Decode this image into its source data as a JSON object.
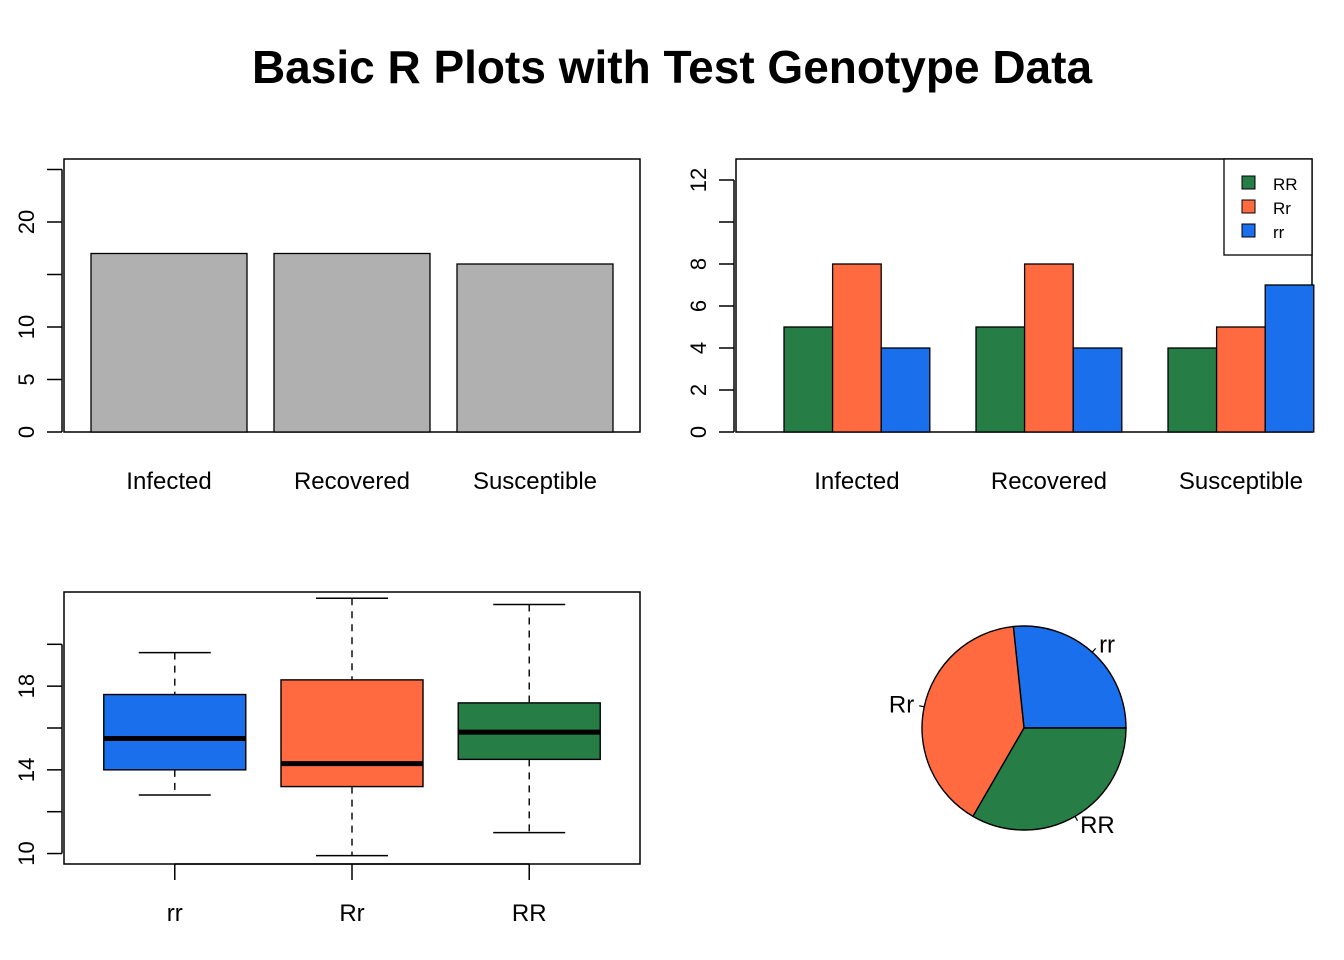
{
  "title": "Basic R Plots with Test Genotype Data",
  "colors": {
    "RR": "#267d46",
    "Rr": "#ff6a40",
    "rr": "#1a6fed",
    "gray": "#b0b0b0"
  },
  "chart_data": [
    {
      "type": "bar",
      "categories": [
        "Infected",
        "Recovered",
        "Susceptible"
      ],
      "values": [
        17,
        17,
        16
      ],
      "ylim": [
        0,
        26
      ],
      "yticks": [
        0,
        5,
        10,
        15,
        20,
        25
      ],
      "ytick_labels": [
        "0",
        "5",
        "10",
        "",
        "20",
        ""
      ]
    },
    {
      "type": "bar",
      "categories": [
        "Infected",
        "Recovered",
        "Susceptible"
      ],
      "series": [
        {
          "name": "RR",
          "values": [
            5,
            5,
            4
          ]
        },
        {
          "name": "Rr",
          "values": [
            8,
            8,
            5
          ]
        },
        {
          "name": "rr",
          "values": [
            4,
            4,
            7
          ]
        }
      ],
      "ylim": [
        0,
        13
      ],
      "yticks": [
        0,
        2,
        4,
        6,
        8,
        10,
        12
      ],
      "ytick_labels": [
        "0",
        "2",
        "4",
        "6",
        "8",
        "",
        "12"
      ],
      "legend": "top-right"
    },
    {
      "type": "box",
      "categories": [
        "rr",
        "Rr",
        "RR"
      ],
      "boxes": [
        {
          "name": "rr",
          "whisker_low": 12.8,
          "q1": 14.0,
          "median": 15.5,
          "q3": 17.6,
          "whisker_high": 19.6
        },
        {
          "name": "Rr",
          "whisker_low": 9.9,
          "q1": 13.2,
          "median": 14.3,
          "q3": 18.3,
          "whisker_high": 22.2
        },
        {
          "name": "RR",
          "whisker_low": 11.0,
          "q1": 14.5,
          "median": 15.8,
          "q3": 17.2,
          "whisker_high": 21.9
        }
      ],
      "ylim": [
        9.5,
        22.5
      ],
      "yticks": [
        10,
        12,
        14,
        16,
        18,
        20
      ],
      "ytick_labels": [
        "10",
        "",
        "14",
        "",
        "18",
        ""
      ]
    },
    {
      "type": "pie",
      "slices": [
        {
          "label": "rr",
          "value": 4
        },
        {
          "label": "Rr",
          "value": 6
        },
        {
          "label": "RR",
          "value": 5
        }
      ]
    }
  ]
}
